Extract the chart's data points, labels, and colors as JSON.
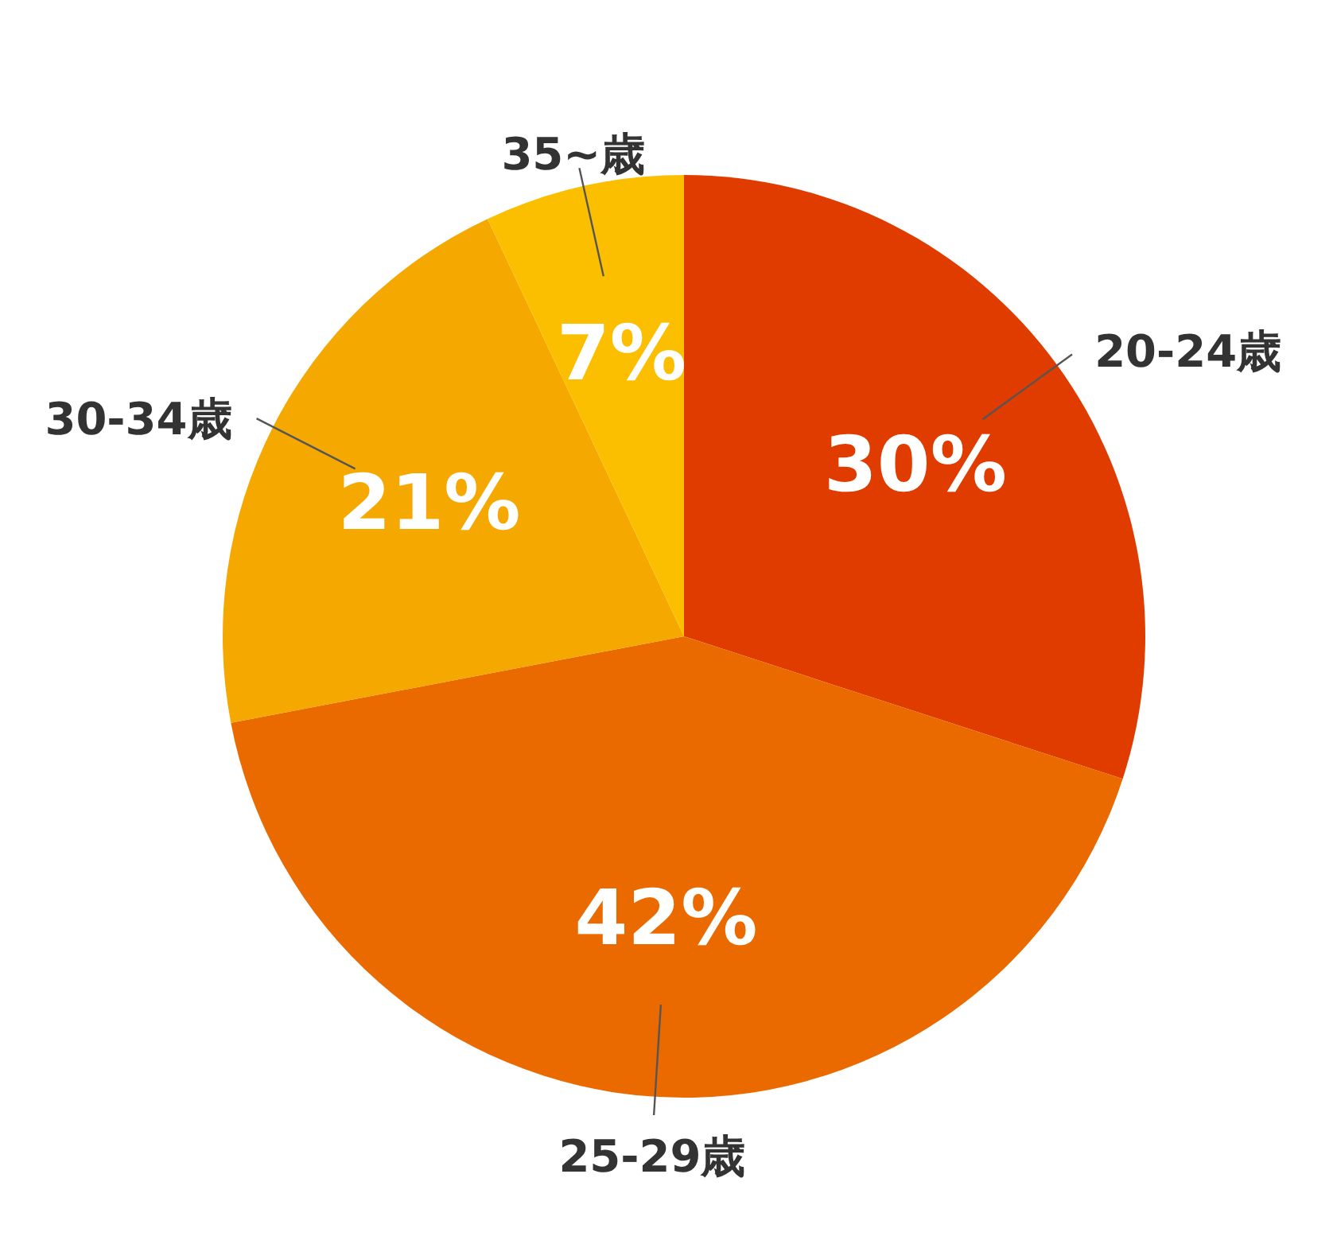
{
  "chart_data": {
    "type": "pie",
    "categories": [
      "20-24歳",
      "25-29歳",
      "30-34歳",
      "35~歳"
    ],
    "values": [
      30,
      42,
      21,
      7
    ],
    "colors": [
      "#e03c00",
      "#eb6a00",
      "#f5a800",
      "#fbbf00"
    ],
    "value_labels": [
      "30%",
      "42%",
      "21%",
      "7%"
    ]
  }
}
